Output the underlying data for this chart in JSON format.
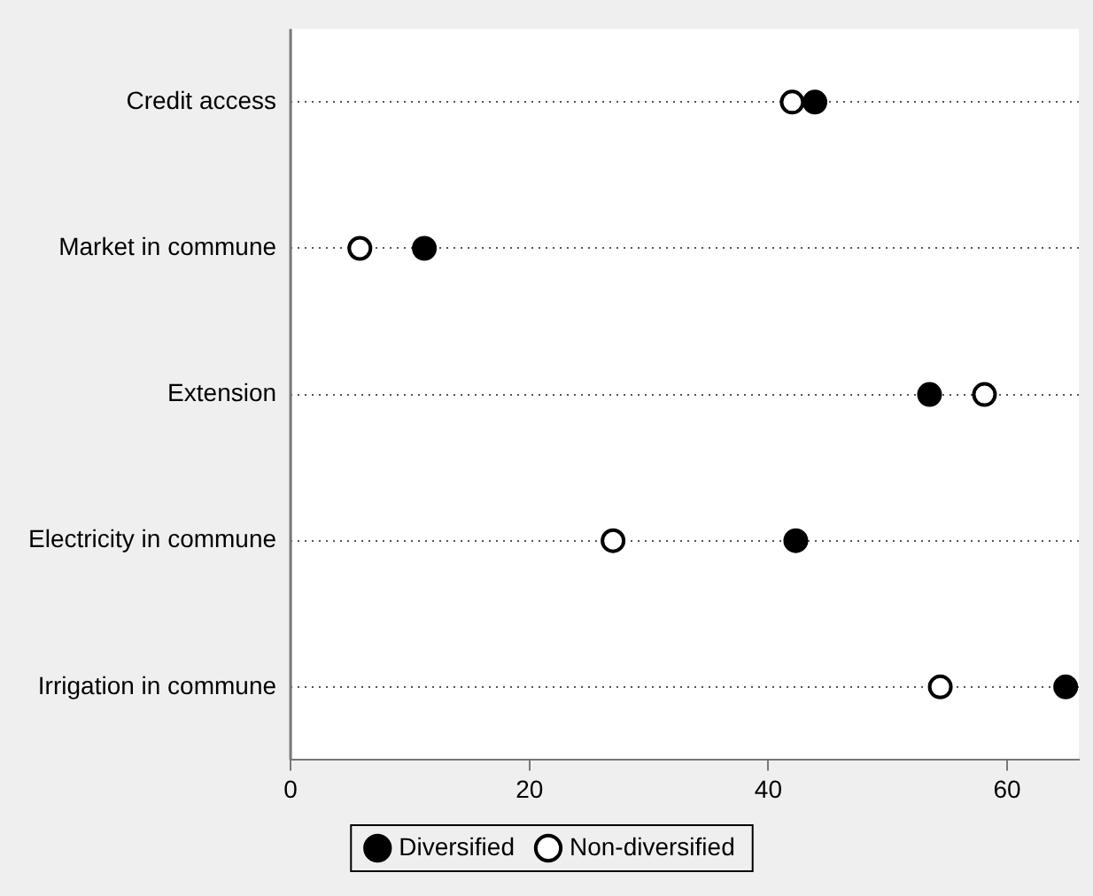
{
  "chart_data": {
    "type": "scatter",
    "orientation": "horizontal",
    "categories": [
      "Credit access",
      "Market in commune",
      "Extension",
      "Electricity in commune",
      "Irrigation in commune"
    ],
    "series": [
      {
        "name": "Diversified",
        "color": "#000000",
        "values": [
          43.9,
          11.2,
          53.5,
          42.3,
          64.9
        ]
      },
      {
        "name": "Non-diversified",
        "color": "#000000",
        "values": [
          42.0,
          5.8,
          58.1,
          27.0,
          54.4
        ]
      }
    ],
    "xlim": [
      0,
      66
    ],
    "xticks": [
      0,
      20,
      40,
      60
    ],
    "grid": "y",
    "legend": "bottom",
    "marker": "circle"
  }
}
